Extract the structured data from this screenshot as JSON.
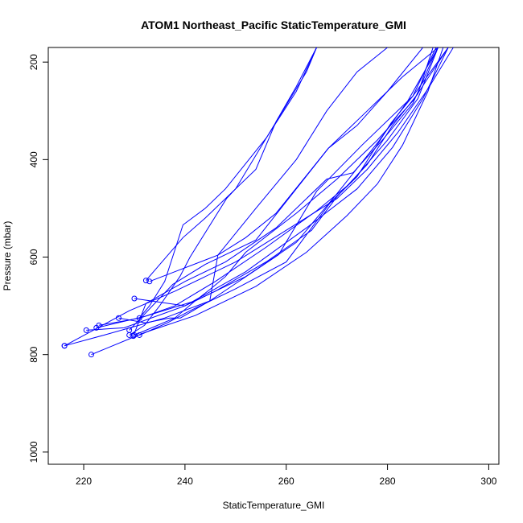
{
  "chart_data": {
    "type": "line",
    "title": "ATOM1 Northeast_Pacific StaticTemperature_GMI",
    "xlabel": "StaticTemperature_GMI",
    "ylabel": "Pressure (mbar)",
    "xlim": [
      213,
      302
    ],
    "ylim": [
      1025,
      170
    ],
    "y_reversed": true,
    "x_ticks": [
      220,
      240,
      260,
      280,
      300
    ],
    "y_ticks": [
      200,
      400,
      600,
      800,
      1000
    ],
    "grid": false,
    "color": "#0000ff",
    "series": [
      {
        "points": [
          [
            226.9,
            725
          ],
          [
            232.2,
            735
          ],
          [
            237,
            725
          ],
          [
            239.1,
            725
          ],
          [
            244.9,
            690
          ],
          [
            258.5,
            595
          ],
          [
            266,
            465
          ],
          [
            275,
            370
          ],
          [
            285,
            270
          ],
          [
            292,
            170
          ]
        ]
      },
      {
        "points": [
          [
            230,
            760
          ],
          [
            238,
            725
          ],
          [
            242,
            690
          ],
          [
            245.1,
            665
          ],
          [
            248,
            640
          ],
          [
            252,
            590
          ],
          [
            262,
            510
          ],
          [
            270,
            440
          ],
          [
            278,
            360
          ],
          [
            285,
            280
          ],
          [
            292,
            170
          ]
        ]
      },
      {
        "points": [
          [
            223,
            740
          ],
          [
            231.2,
            725
          ],
          [
            238,
            700
          ],
          [
            246,
            650
          ],
          [
            256,
            580
          ],
          [
            266,
            505
          ],
          [
            272.5,
            450
          ],
          [
            280,
            360
          ],
          [
            286,
            275
          ],
          [
            290,
            170
          ]
        ]
      },
      {
        "points": [
          [
            220.5,
            750
          ],
          [
            228,
            745
          ],
          [
            240,
            700
          ],
          [
            252,
            630
          ],
          [
            264,
            540
          ],
          [
            274,
            460
          ],
          [
            281,
            375
          ],
          [
            287,
            275
          ],
          [
            292,
            170
          ]
        ]
      },
      {
        "points": [
          [
            216.2,
            782
          ],
          [
            229,
            710
          ],
          [
            238,
            670
          ],
          [
            250,
            610
          ],
          [
            260,
            545
          ],
          [
            270,
            480
          ],
          [
            276,
            420
          ],
          [
            282,
            345
          ],
          [
            288,
            255
          ],
          [
            293,
            170
          ]
        ]
      },
      {
        "points": [
          [
            221.5,
            800
          ],
          [
            232,
            755
          ],
          [
            242,
            720
          ],
          [
            254,
            660
          ],
          [
            264,
            590
          ],
          [
            272,
            515
          ],
          [
            278,
            450
          ],
          [
            283,
            370
          ],
          [
            288,
            260
          ],
          [
            291,
            170
          ]
        ]
      },
      {
        "points": [
          [
            231,
            760
          ],
          [
            236.5,
            735
          ],
          [
            241,
            710
          ],
          [
            250,
            665
          ],
          [
            260,
            610
          ],
          [
            268.8,
            487
          ],
          [
            274,
            435
          ],
          [
            280.7,
            325
          ],
          [
            285,
            270
          ],
          [
            289.6,
            170
          ]
        ]
      },
      {
        "points": [
          [
            230,
            685
          ],
          [
            240,
            700
          ],
          [
            246,
            670
          ],
          [
            256,
            610
          ],
          [
            265,
            545
          ],
          [
            270.1,
            475
          ],
          [
            276,
            410
          ],
          [
            281,
            330
          ],
          [
            286,
            265
          ],
          [
            289,
            170
          ]
        ]
      },
      {
        "points": [
          [
            222.5,
            745
          ],
          [
            232,
            722
          ],
          [
            242,
            690
          ],
          [
            252,
            640
          ],
          [
            262,
            570
          ],
          [
            270,
            470
          ],
          [
            278.3,
            362
          ],
          [
            284,
            280
          ],
          [
            290,
            170
          ]
        ]
      },
      {
        "points": [
          [
            229.8,
            762
          ],
          [
            232.3,
            695
          ],
          [
            240,
            650
          ],
          [
            248,
            610
          ],
          [
            258,
            540
          ],
          [
            268,
            440
          ],
          [
            273.2,
            427
          ],
          [
            279,
            360
          ],
          [
            285,
            285
          ],
          [
            289.9,
            170
          ]
        ]
      },
      {
        "points": [
          [
            229,
            750
          ],
          [
            237.6,
            656
          ],
          [
            244,
            615
          ],
          [
            254,
            565
          ],
          [
            268.3,
            377
          ],
          [
            274,
            330
          ],
          [
            280,
            260
          ],
          [
            287,
            170
          ]
        ]
      },
      {
        "points": [
          [
            232.3,
            648
          ],
          [
            239.6,
            560
          ],
          [
            244,
            520
          ],
          [
            254,
            420
          ],
          [
            258,
            322
          ],
          [
            262,
            250
          ],
          [
            266,
            170
          ]
        ]
      },
      {
        "points": [
          [
            233,
            650
          ],
          [
            238,
            630
          ],
          [
            246.5,
            596
          ],
          [
            252,
            560
          ],
          [
            258,
            510
          ],
          [
            268.3,
            377
          ],
          [
            276,
            300
          ],
          [
            283,
            230
          ],
          [
            290,
            170
          ]
        ]
      },
      {
        "points": [
          [
            229,
            760
          ],
          [
            232,
            740
          ],
          [
            235,
            700
          ],
          [
            239,
            640
          ],
          [
            241,
            600
          ],
          [
            248.2,
            480
          ],
          [
            250,
            460
          ],
          [
            256.1,
            355
          ],
          [
            262,
            260
          ],
          [
            266,
            170
          ]
        ]
      },
      {
        "points": [
          [
            231,
            725
          ],
          [
            233,
            700
          ],
          [
            236,
            650
          ],
          [
            239.6,
            534
          ],
          [
            244,
            500
          ],
          [
            248,
            460
          ],
          [
            256.1,
            355
          ],
          [
            264,
            220
          ],
          [
            266,
            170
          ]
        ]
      },
      {
        "points": [
          [
            216.2,
            782
          ],
          [
            224,
            760
          ],
          [
            236,
            725
          ],
          [
            244.9,
            690
          ],
          [
            246.5,
            596
          ],
          [
            254,
            500
          ],
          [
            262,
            400
          ],
          [
            268,
            300
          ],
          [
            274,
            220
          ],
          [
            280,
            170
          ]
        ]
      }
    ]
  }
}
